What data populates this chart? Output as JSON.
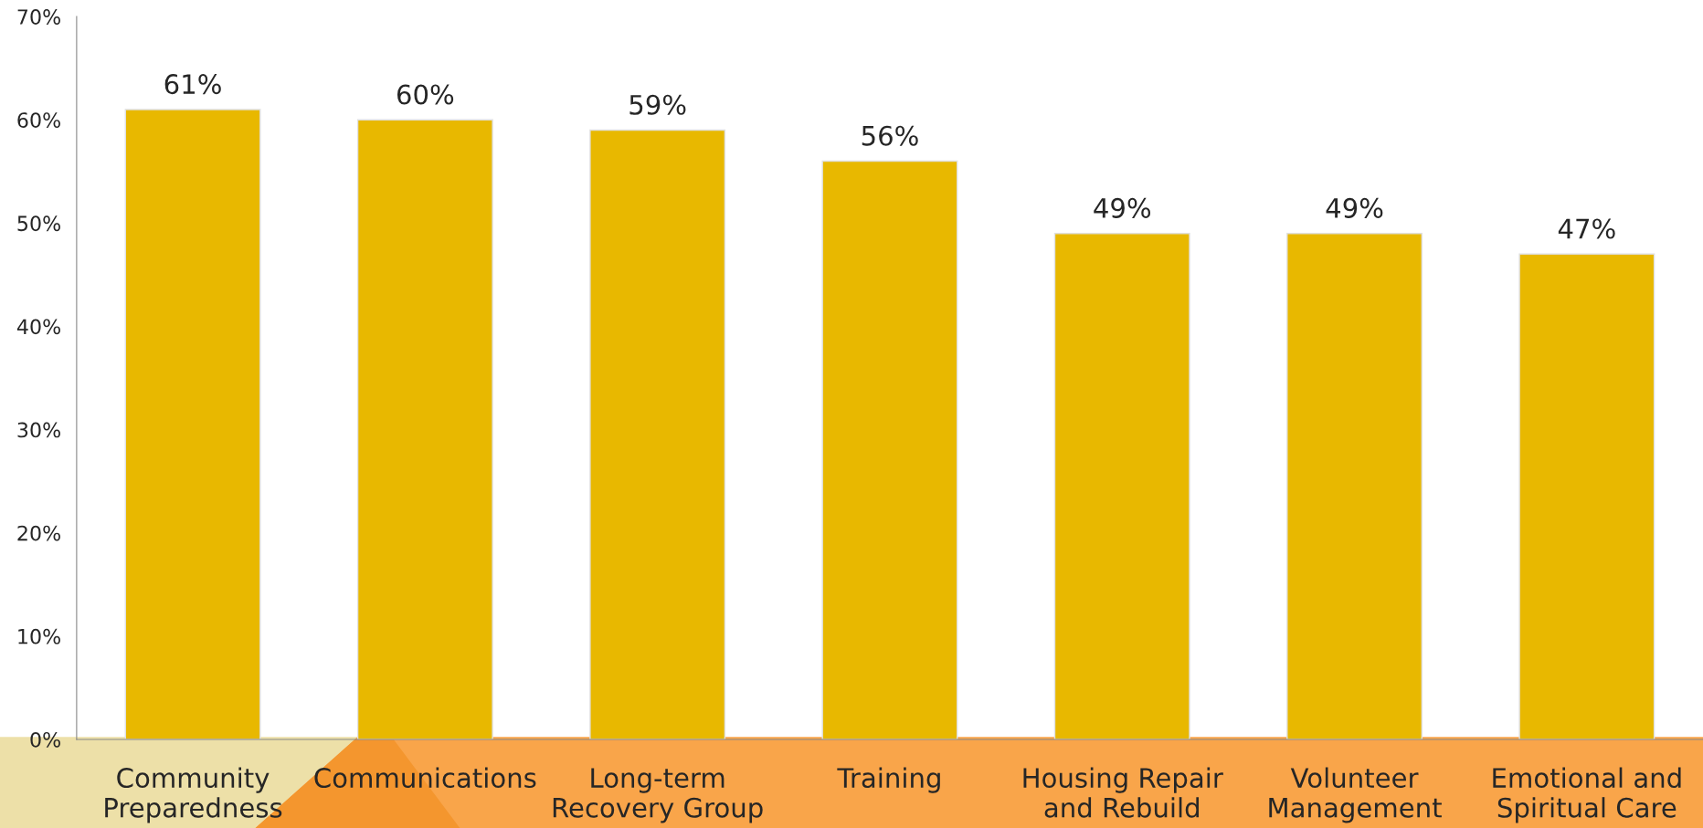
{
  "chart_data": {
    "type": "bar",
    "categories": [
      "Community\nPreparedness",
      "Communications",
      "Long-term\nRecovery Group",
      "Training",
      "Housing Repair\nand Rebuild",
      "Volunteer\nManagement",
      "Emotional and\nSpiritual Care"
    ],
    "values": [
      61,
      60,
      59,
      56,
      49,
      49,
      47
    ],
    "color": "#e8b800",
    "value_labels": [
      "61%",
      "60%",
      "59%",
      "56%",
      "49%",
      "49%",
      "47%"
    ],
    "ylim": [
      0,
      70
    ],
    "yticks": [
      {
        "value": 0,
        "label": "0%"
      },
      {
        "value": 10,
        "label": "10%"
      },
      {
        "value": 20,
        "label": "20%"
      },
      {
        "value": 30,
        "label": "30%"
      },
      {
        "value": 40,
        "label": "40%"
      },
      {
        "value": 50,
        "label": "50%"
      },
      {
        "value": 60,
        "label": "60%"
      },
      {
        "value": 70,
        "label": "70%"
      }
    ],
    "grid": false,
    "legend": false
  }
}
